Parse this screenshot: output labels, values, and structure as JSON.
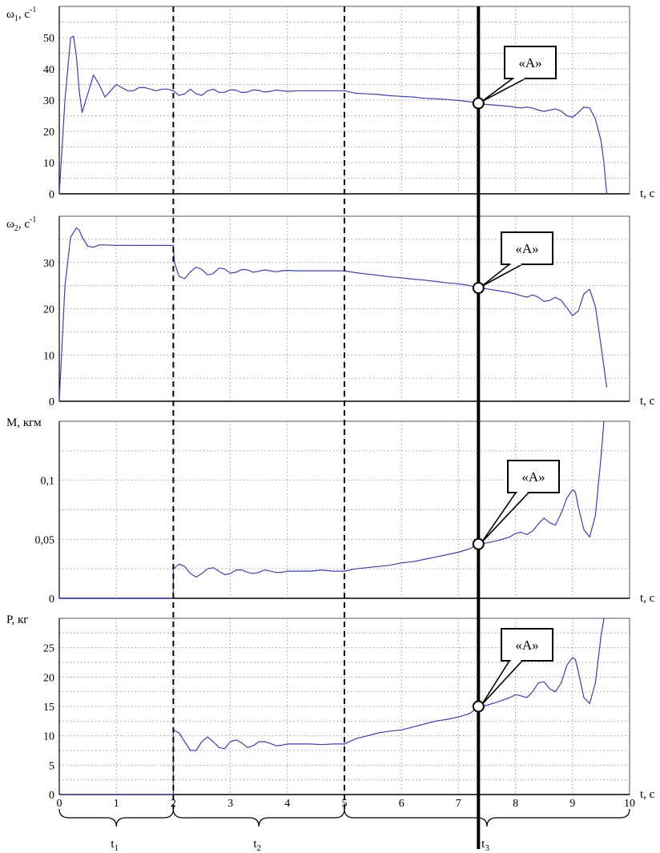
{
  "colors": {
    "curve": "#3a3ad8",
    "grid": "#9a9a9a",
    "axis": "#000000",
    "marker": "#000000"
  },
  "x_axis": {
    "label": "t, с",
    "ticks": [
      "0",
      "1",
      "2",
      "3",
      "4",
      "5",
      "6",
      "7",
      "8",
      "9",
      "10"
    ]
  },
  "boundaries": {
    "dashed_t": [
      2,
      5
    ],
    "marker_t": 7.35
  },
  "callout_label": "«А»",
  "intervals": [
    {
      "from": 0,
      "to": 2,
      "label_main": "t",
      "label_sub": "1"
    },
    {
      "from": 2,
      "to": 5,
      "label_main": "t",
      "label_sub": "2"
    },
    {
      "from": 5,
      "to": 10,
      "label_main": "t",
      "label_sub": "3"
    }
  ],
  "chart_data": [
    {
      "type": "line",
      "ylabel_main": "ω",
      "ylabel_sub": "1",
      "ylabel_unit": ", с",
      "ylabel_sup": "-1",
      "xlabel": "t, с",
      "xlim": [
        0,
        10
      ],
      "ylim": [
        0,
        60
      ],
      "grid": true,
      "ticks_y": [
        0,
        10,
        20,
        30,
        40,
        50
      ],
      "tick_labels": [
        "0",
        "10",
        "20",
        "30",
        "40",
        "50"
      ],
      "x": [
        0,
        0.1,
        0.2,
        0.25,
        0.3,
        0.35,
        0.4,
        0.5,
        0.6,
        0.7,
        0.8,
        0.9,
        1.0,
        1.1,
        1.2,
        1.3,
        1.4,
        1.5,
        1.6,
        1.7,
        1.8,
        1.9,
        2.0,
        2.1,
        2.2,
        2.3,
        2.4,
        2.5,
        2.6,
        2.7,
        2.8,
        2.9,
        3.0,
        3.1,
        3.2,
        3.3,
        3.4,
        3.5,
        3.6,
        3.7,
        3.8,
        3.9,
        4.0,
        4.2,
        4.4,
        4.6,
        4.8,
        5.0,
        5.2,
        5.4,
        5.6,
        5.8,
        6.0,
        6.2,
        6.4,
        6.6,
        6.8,
        7.0,
        7.2,
        7.35,
        7.5,
        7.7,
        7.9,
        8.0,
        8.1,
        8.2,
        8.3,
        8.4,
        8.5,
        8.6,
        8.7,
        8.8,
        8.9,
        9.0,
        9.1,
        9.2,
        9.3,
        9.4,
        9.5,
        9.55,
        9.6
      ],
      "values": [
        0,
        30,
        50,
        50.5,
        44,
        33,
        26,
        32,
        38,
        35,
        31,
        33,
        35,
        34,
        33,
        33,
        34,
        34,
        33.5,
        33,
        33.5,
        33.5,
        33,
        31.5,
        32,
        33.5,
        32,
        31.5,
        33,
        33.5,
        32.5,
        32.5,
        33.3,
        33.2,
        32.4,
        32.6,
        33.3,
        33.1,
        32.6,
        32.8,
        33.2,
        33.0,
        32.8,
        33.0,
        33.0,
        33.0,
        33.0,
        33.0,
        32.2,
        32,
        31.8,
        31.4,
        31.2,
        31,
        30.6,
        30.4,
        30.2,
        29.9,
        29.5,
        29,
        28.6,
        28.3,
        28,
        27.7,
        27.5,
        27.8,
        27.4,
        26.8,
        26.4,
        26.8,
        27.2,
        26.5,
        25,
        24.5,
        26,
        27.8,
        27.5,
        24,
        17,
        10,
        0
      ]
    },
    {
      "type": "line",
      "ylabel_main": "ω",
      "ylabel_sub": "2",
      "ylabel_unit": ", с",
      "ylabel_sup": "-1",
      "xlabel": "t, с",
      "xlim": [
        0,
        10
      ],
      "ylim": [
        0,
        40
      ],
      "grid": true,
      "ticks_y": [
        0,
        10,
        20,
        30
      ],
      "tick_labels": [
        "0",
        "10",
        "20",
        "30"
      ],
      "x": [
        0,
        0.1,
        0.2,
        0.3,
        0.35,
        0.4,
        0.5,
        0.6,
        0.7,
        0.8,
        1.0,
        1.2,
        1.4,
        1.6,
        1.8,
        2.0,
        2.02,
        2.1,
        2.2,
        2.3,
        2.4,
        2.5,
        2.6,
        2.7,
        2.8,
        2.9,
        3.0,
        3.1,
        3.2,
        3.3,
        3.4,
        3.5,
        3.6,
        3.7,
        3.8,
        3.9,
        4.0,
        4.2,
        4.4,
        4.6,
        4.8,
        5.0,
        5.2,
        5.4,
        5.6,
        5.8,
        6.0,
        6.2,
        6.4,
        6.6,
        6.8,
        7.0,
        7.2,
        7.35,
        7.5,
        7.7,
        7.9,
        8.0,
        8.1,
        8.2,
        8.3,
        8.4,
        8.5,
        8.6,
        8.7,
        8.8,
        8.9,
        9.0,
        9.1,
        9.2,
        9.3,
        9.4,
        9.5,
        9.6
      ],
      "values": [
        0,
        25,
        35.5,
        37.5,
        37,
        35.5,
        33.5,
        33.3,
        33.8,
        33.8,
        33.7,
        33.7,
        33.7,
        33.7,
        33.7,
        33.7,
        30,
        27,
        26.5,
        28,
        29,
        28.5,
        27.3,
        27.6,
        28.8,
        28.6,
        27.7,
        27.9,
        28.5,
        28.4,
        27.9,
        28.1,
        28.4,
        28.2,
        28.0,
        28.2,
        28.3,
        28.2,
        28.2,
        28.2,
        28.2,
        28.2,
        27.8,
        27.5,
        27.2,
        26.9,
        26.7,
        26.4,
        26.2,
        25.9,
        25.6,
        25.4,
        25.0,
        24.5,
        24.3,
        23.9,
        23.5,
        23.2,
        22.8,
        22.5,
        23.0,
        22.5,
        21.6,
        21.8,
        22.5,
        21.8,
        20.2,
        18.5,
        19.5,
        23.2,
        24.2,
        20.5,
        12,
        3
      ]
    },
    {
      "type": "line",
      "ylabel_main": "М, кгм",
      "ylabel_sub": "",
      "ylabel_unit": "",
      "ylabel_sup": "",
      "xlabel": "t, с",
      "xlim": [
        0,
        10
      ],
      "ylim": [
        0,
        0.15
      ],
      "grid": true,
      "ticks_y": [
        0,
        0.05,
        0.1
      ],
      "tick_labels": [
        "0",
        "0,05",
        "0,1"
      ],
      "x": [
        0,
        1.0,
        2.0,
        2.0,
        2.1,
        2.2,
        2.3,
        2.4,
        2.5,
        2.6,
        2.7,
        2.8,
        2.9,
        3.0,
        3.1,
        3.2,
        3.3,
        3.4,
        3.5,
        3.6,
        3.7,
        3.8,
        3.9,
        4.0,
        4.2,
        4.4,
        4.6,
        4.8,
        5.0,
        5.2,
        5.4,
        5.6,
        5.8,
        6.0,
        6.2,
        6.4,
        6.6,
        6.8,
        7.0,
        7.2,
        7.35,
        7.5,
        7.7,
        7.9,
        8.0,
        8.1,
        8.2,
        8.3,
        8.4,
        8.5,
        8.6,
        8.7,
        8.8,
        8.9,
        9.0,
        9.05,
        9.1,
        9.2,
        9.3,
        9.4,
        9.5,
        9.55
      ],
      "values": [
        0,
        0,
        0,
        0.025,
        0.029,
        0.027,
        0.021,
        0.018,
        0.021,
        0.025,
        0.026,
        0.023,
        0.02,
        0.021,
        0.024,
        0.024,
        0.022,
        0.021,
        0.022,
        0.024,
        0.023,
        0.022,
        0.022,
        0.023,
        0.023,
        0.023,
        0.024,
        0.023,
        0.023,
        0.025,
        0.026,
        0.027,
        0.028,
        0.03,
        0.031,
        0.033,
        0.035,
        0.037,
        0.039,
        0.042,
        0.046,
        0.047,
        0.049,
        0.052,
        0.055,
        0.056,
        0.054,
        0.057,
        0.063,
        0.068,
        0.064,
        0.062,
        0.072,
        0.085,
        0.092,
        0.09,
        0.078,
        0.058,
        0.052,
        0.07,
        0.12,
        0.15
      ]
    },
    {
      "type": "line",
      "ylabel_main": "Р, кг",
      "ylabel_sub": "",
      "ylabel_unit": "",
      "ylabel_sup": "",
      "xlabel": "t, с",
      "xlim": [
        0,
        10
      ],
      "ylim": [
        0,
        30
      ],
      "grid": true,
      "ticks_y": [
        0,
        5,
        10,
        15,
        20,
        25
      ],
      "tick_labels": [
        "0",
        "5",
        "10",
        "15",
        "20",
        "25"
      ],
      "x": [
        0,
        1.0,
        2.0,
        2.0,
        2.1,
        2.2,
        2.3,
        2.4,
        2.5,
        2.6,
        2.7,
        2.8,
        2.9,
        3.0,
        3.1,
        3.2,
        3.3,
        3.4,
        3.5,
        3.6,
        3.7,
        3.8,
        3.9,
        4.0,
        4.2,
        4.4,
        4.6,
        4.8,
        5.0,
        5.2,
        5.4,
        5.6,
        5.8,
        6.0,
        6.2,
        6.4,
        6.6,
        6.8,
        7.0,
        7.2,
        7.35,
        7.5,
        7.7,
        7.9,
        8.0,
        8.1,
        8.2,
        8.3,
        8.4,
        8.5,
        8.6,
        8.7,
        8.8,
        8.9,
        9.0,
        9.05,
        9.1,
        9.2,
        9.3,
        9.4,
        9.5,
        9.55
      ],
      "values": [
        0,
        0,
        0,
        11,
        10.5,
        9,
        7.5,
        7.5,
        9,
        9.8,
        9,
        8,
        7.8,
        9,
        9.3,
        8.8,
        8,
        8.3,
        9,
        9,
        8.7,
        8.3,
        8.4,
        8.6,
        8.6,
        8.6,
        8.5,
        8.6,
        8.6,
        9.5,
        10,
        10.5,
        10.8,
        11,
        11.5,
        12,
        12.5,
        12.8,
        13.2,
        13.8,
        15,
        15.2,
        15.8,
        16.5,
        17,
        16.8,
        16.5,
        17.5,
        19,
        19.2,
        18,
        17.5,
        19,
        22,
        23.3,
        23,
        21,
        16.5,
        15.5,
        19,
        27,
        30
      ]
    }
  ]
}
